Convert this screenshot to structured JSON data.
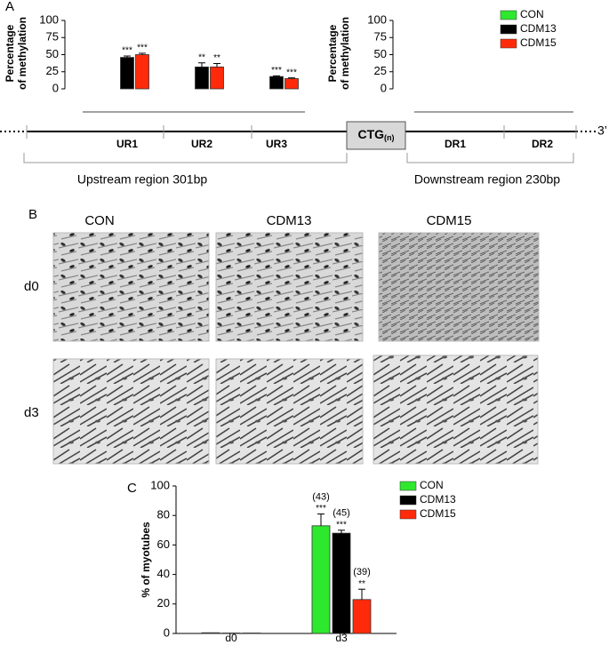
{
  "panels": {
    "a": "A",
    "b": "B",
    "c": "C"
  },
  "diagram": {
    "box": "CTG",
    "box_subscript": "(n)",
    "end": "3’",
    "upstream": "Upstream region 301bp",
    "downstream": "Downstream region 230bp"
  },
  "images": {
    "columns": [
      "CON",
      "CDM13",
      "CDM15"
    ],
    "rows": [
      "d0",
      "d3"
    ]
  },
  "chart_data": [
    {
      "type": "bar",
      "ylabel": [
        "Percentage",
        "of methylation"
      ],
      "categories": [
        "UR1",
        "UR2",
        "UR3"
      ],
      "ylim": [
        0,
        100
      ],
      "yticks": [
        0,
        25,
        50,
        75,
        100
      ],
      "series": [
        {
          "name": "CON",
          "color": "#2ee82e",
          "values": [
            0,
            0,
            0
          ]
        },
        {
          "name": "CDM13",
          "color": "#000000",
          "values": [
            46,
            32,
            18
          ],
          "errors": [
            2,
            6,
            1
          ],
          "labels": [
            "***",
            "**",
            "***"
          ]
        },
        {
          "name": "CDM15",
          "color": "#ff2a0a",
          "values": [
            50,
            32,
            15
          ],
          "errors": [
            2,
            5,
            1
          ],
          "labels": [
            "***",
            "**",
            "***"
          ]
        }
      ]
    },
    {
      "type": "bar",
      "ylabel": [
        "Percentage",
        "of methylation"
      ],
      "categories": [
        "DR1",
        "DR2"
      ],
      "ylim": [
        0,
        100
      ],
      "yticks": [
        0,
        25,
        50,
        75,
        100
      ],
      "legend": "upper right",
      "series": [
        {
          "name": "CON",
          "color": "#2ee82e",
          "values": [
            0,
            0
          ]
        },
        {
          "name": "CDM13",
          "color": "#000000",
          "values": [
            0,
            0
          ]
        },
        {
          "name": "CDM15",
          "color": "#ff2a0a",
          "values": [
            0,
            0
          ]
        }
      ]
    },
    {
      "type": "bar",
      "ylabel": [
        "% of myotubes"
      ],
      "categories": [
        "d0",
        "d3"
      ],
      "ylim": [
        0,
        100
      ],
      "yticks": [
        0,
        20,
        40,
        60,
        80,
        100
      ],
      "legend": "upper right",
      "series": [
        {
          "name": "CON",
          "color": "#2ee82e",
          "values": [
            0.5,
            73
          ],
          "errors": [
            null,
            8
          ],
          "labels": [
            null,
            "***"
          ],
          "notes": [
            null,
            "(43)"
          ]
        },
        {
          "name": "CDM13",
          "color": "#000000",
          "values": [
            0.3,
            68
          ],
          "errors": [
            null,
            2
          ],
          "labels": [
            null,
            "***"
          ],
          "notes": [
            null,
            "(45)"
          ]
        },
        {
          "name": "CDM15",
          "color": "#ff2a0a",
          "values": [
            0.3,
            23
          ],
          "errors": [
            null,
            7
          ],
          "labels": [
            null,
            "**"
          ],
          "notes": [
            null,
            "(39)"
          ]
        }
      ]
    }
  ]
}
